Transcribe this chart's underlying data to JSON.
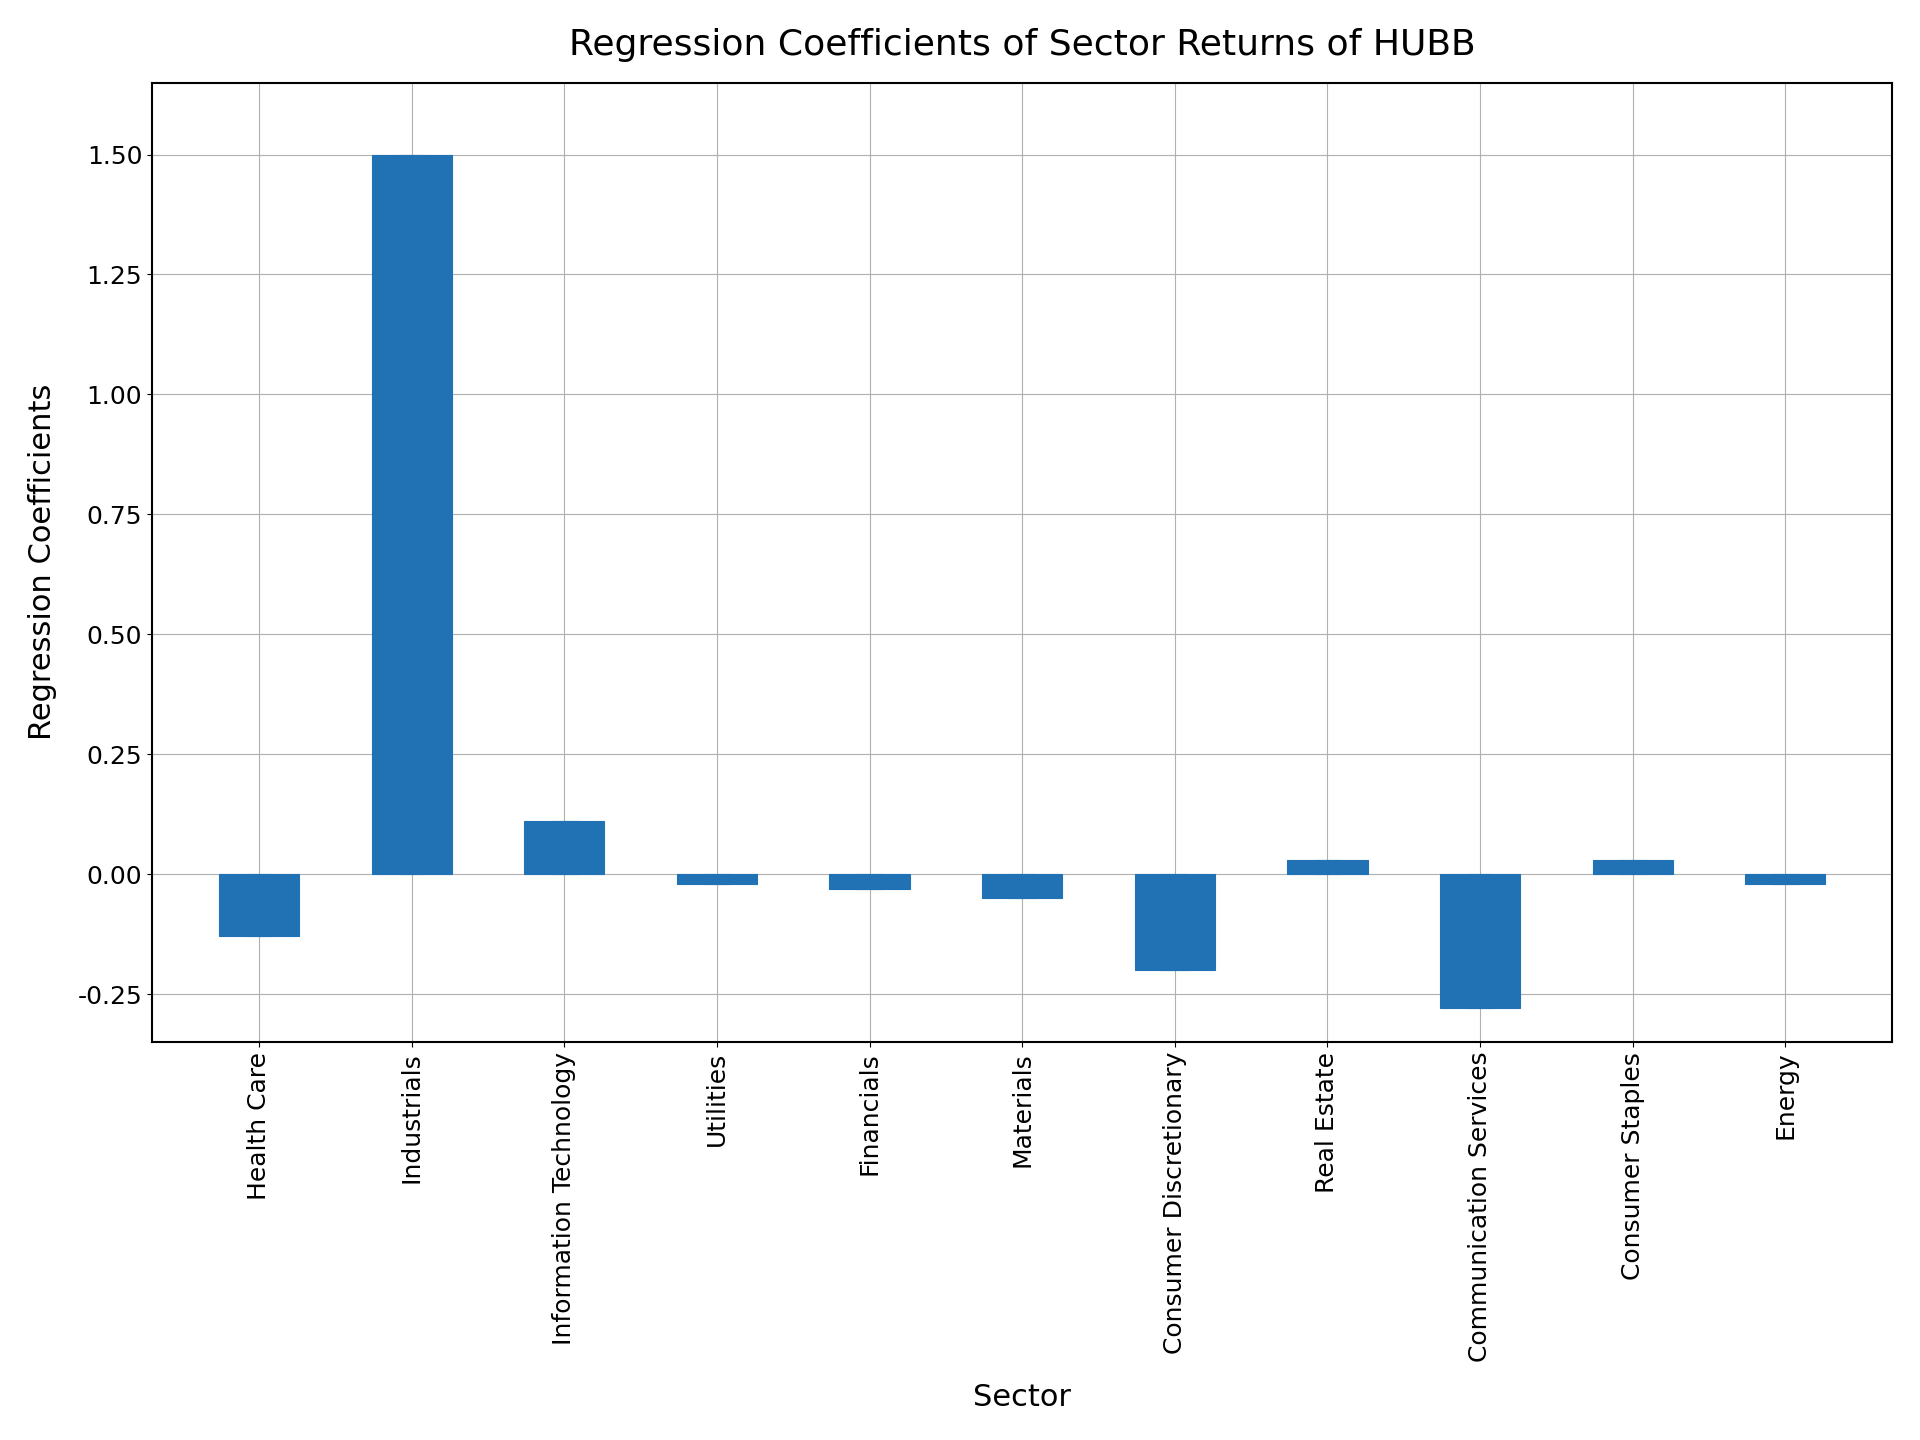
{
  "title": "Regression Coefficients of Sector Returns of HUBB",
  "xlabel": "Sector",
  "ylabel": "Regression Coefficients",
  "categories": [
    "Health Care",
    "Industrials",
    "Information Technology",
    "Utilities",
    "Financials",
    "Materials",
    "Consumer Discretionary",
    "Real Estate",
    "Communication Services",
    "Consumer Staples",
    "Energy"
  ],
  "values": [
    -0.13,
    1.5,
    0.11,
    -0.02,
    -0.03,
    -0.05,
    -0.2,
    0.03,
    -0.28,
    0.03,
    -0.02
  ],
  "bar_color": "#2171b5",
  "bar_edgecolor": "#2171b5",
  "background_color": "#ffffff",
  "grid_color": "#b0b0b0",
  "ylim": [
    -0.35,
    1.65
  ],
  "yticks": [
    -0.25,
    0.0,
    0.25,
    0.5,
    0.75,
    1.0,
    1.25,
    1.5
  ],
  "title_fontsize": 26,
  "label_fontsize": 22,
  "tick_fontsize": 18,
  "figure_width": 19.2,
  "figure_height": 14.4,
  "dpi": 100,
  "bar_width": 0.35
}
